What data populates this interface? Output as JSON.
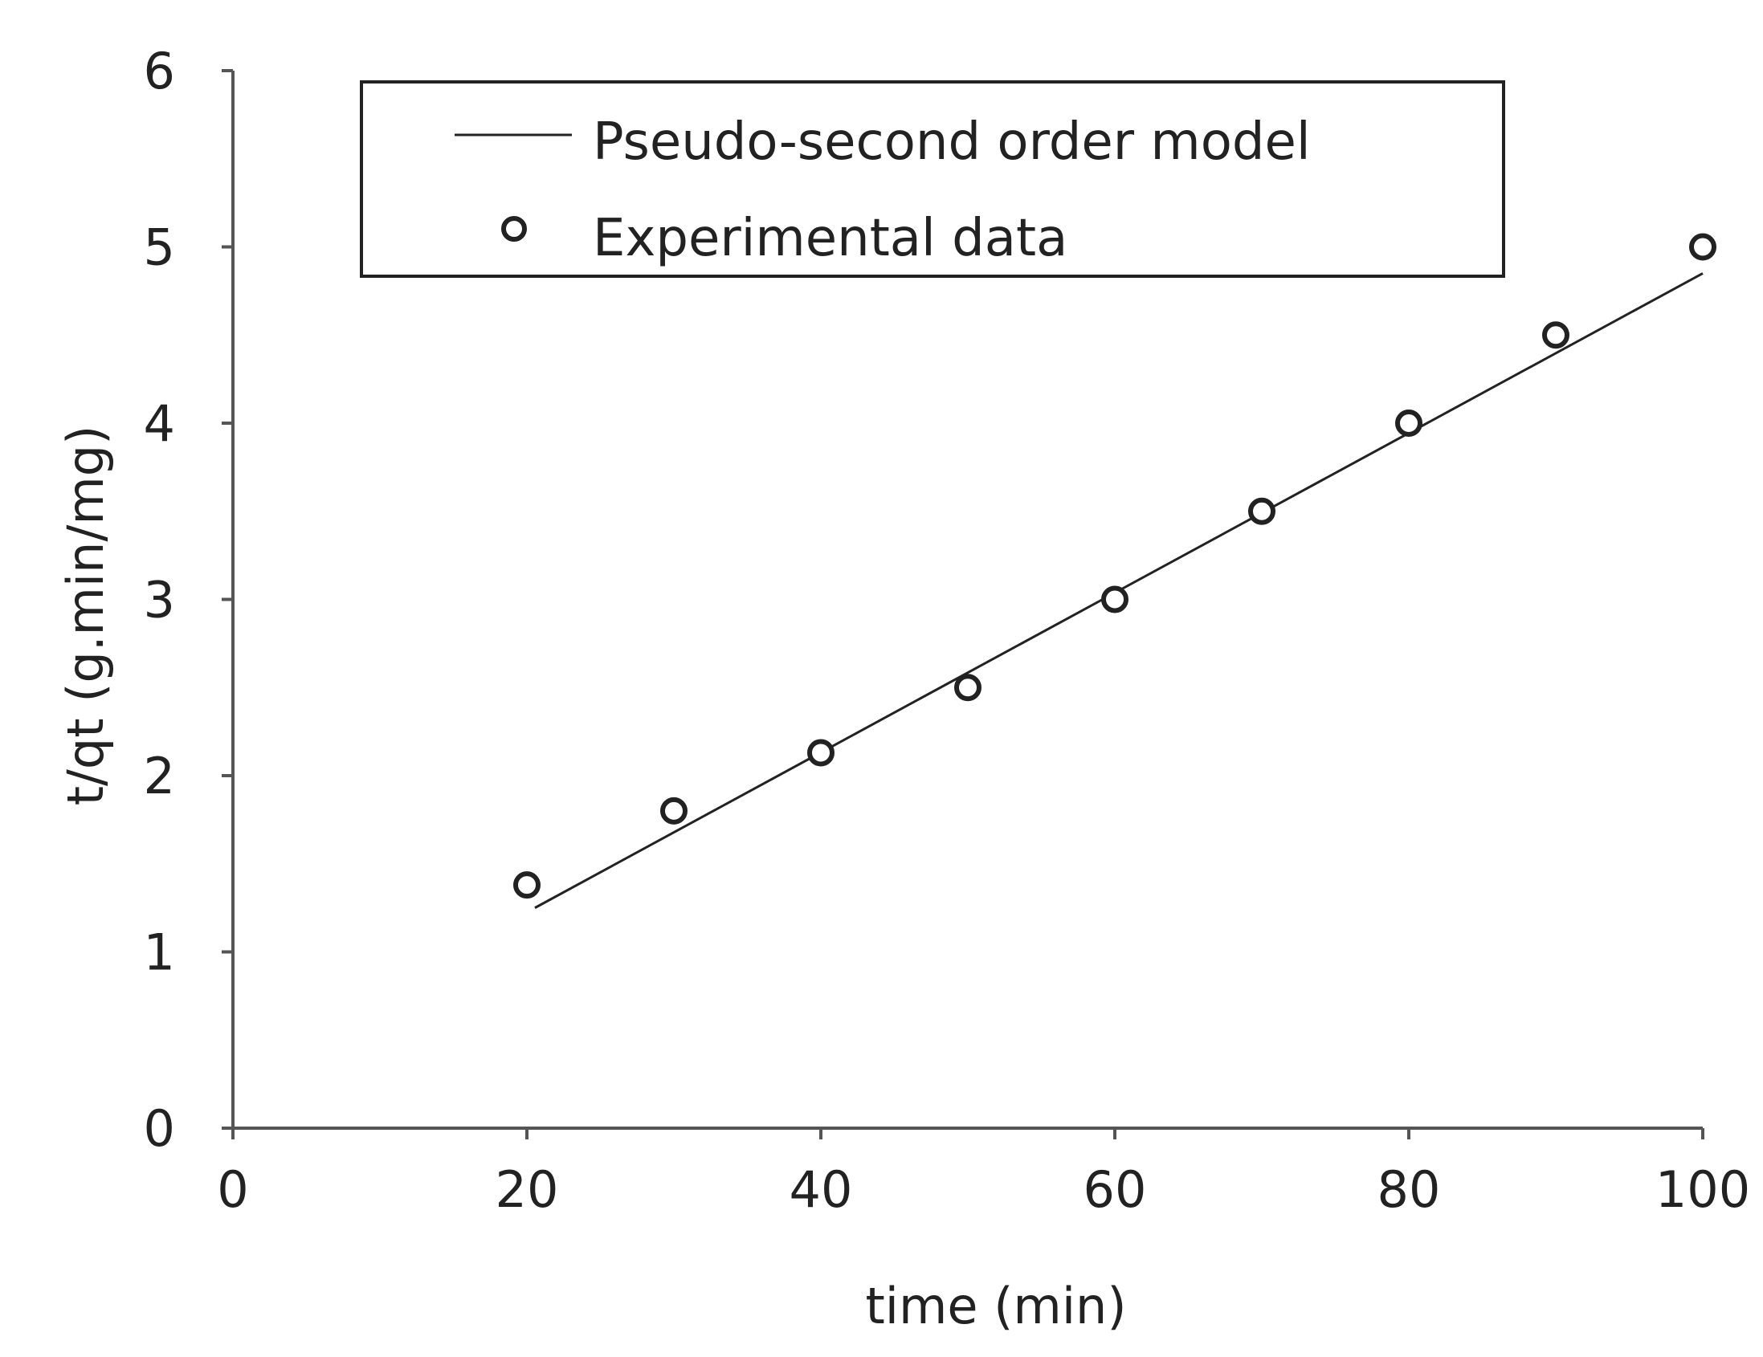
{
  "chart_data": {
    "type": "scatter",
    "title": "",
    "xlabel": "time (min)",
    "ylabel": "t/qt (g.min/mg)",
    "xlim": [
      0,
      100
    ],
    "ylim": [
      0,
      6
    ],
    "xticks": [
      0,
      20,
      40,
      60,
      80,
      100
    ],
    "yticks": [
      0,
      1,
      2,
      3,
      4,
      5,
      6
    ],
    "grid": false,
    "legend_position": "top",
    "series": [
      {
        "name": "Pseudo-second order model",
        "kind": "line",
        "color": "#222222",
        "x": [
          20,
          100
        ],
        "y": [
          1.25,
          4.85
        ]
      },
      {
        "name": "Experimental data",
        "kind": "scatter",
        "marker": "open-circle",
        "color": "#222222",
        "x": [
          20,
          30,
          40,
          50,
          60,
          70,
          80,
          90,
          100
        ],
        "y": [
          1.38,
          1.8,
          2.13,
          2.5,
          3.0,
          3.5,
          4.0,
          4.5,
          5.0
        ]
      }
    ]
  }
}
